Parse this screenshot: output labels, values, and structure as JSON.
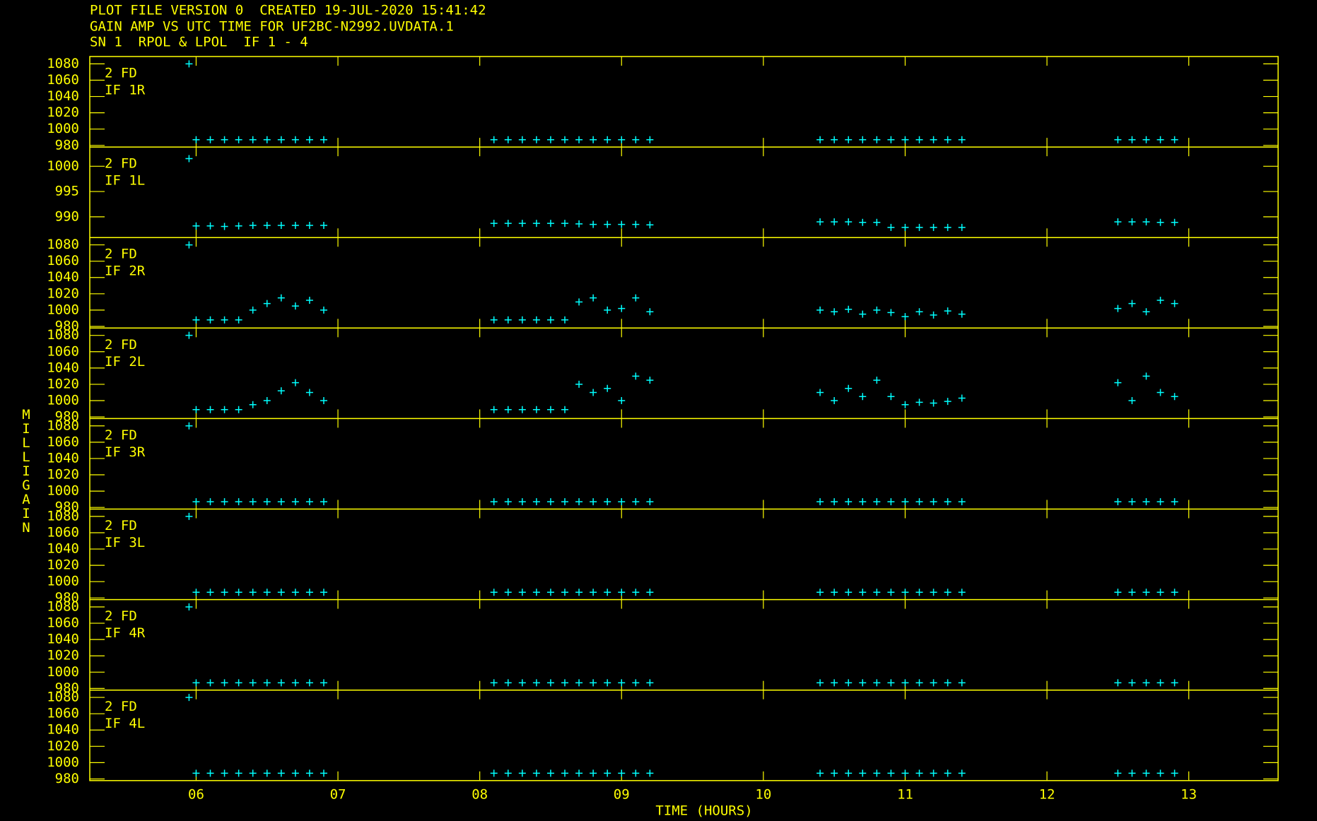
{
  "header": [
    "PLOT FILE VERSION 0  CREATED 19-JUL-2020 15:41:42",
    "GAIN AMP VS UTC TIME FOR UF2BC-N2992.UVDATA.1",
    "SN 1  RPOL & LPOL  IF 1 - 4"
  ],
  "y_axis_label": "MILLIGAIN",
  "x_axis": {
    "label": "TIME (HOURS)",
    "xlim": [
      5.25,
      13.63
    ],
    "xticks": [
      {
        "value": 6,
        "label": "06"
      },
      {
        "value": 7,
        "label": "07"
      },
      {
        "value": 8,
        "label": "08"
      },
      {
        "value": 9,
        "label": "09"
      },
      10,
      11,
      12,
      13
    ]
  },
  "chart_data": [
    {
      "type": "scatter",
      "annotation": "2 FD",
      "label": "IF 1R",
      "color": "#00ffff",
      "ylim": [
        978,
        1089
      ],
      "yticks": [
        980,
        1000,
        1020,
        1040,
        1060,
        1080
      ],
      "x": [
        5.95,
        6.0,
        6.1,
        6.2,
        6.3,
        6.4,
        6.5,
        6.6,
        6.7,
        6.8,
        6.9,
        8.1,
        8.2,
        8.3,
        8.4,
        8.5,
        8.6,
        8.7,
        8.8,
        8.9,
        9.0,
        9.1,
        9.2,
        10.4,
        10.5,
        10.6,
        10.7,
        10.8,
        10.9,
        11.0,
        11.1,
        11.2,
        11.3,
        11.4,
        12.5,
        12.6,
        12.7,
        12.8,
        12.9
      ],
      "values": [
        1080,
        987,
        987,
        987,
        987,
        987,
        987,
        987,
        987,
        987,
        987,
        987,
        987,
        987,
        987,
        987,
        987,
        987,
        987,
        987,
        987,
        987,
        987,
        987,
        987,
        987,
        987,
        987,
        987,
        987,
        987,
        987,
        987,
        987,
        987,
        987,
        987,
        987,
        987
      ]
    },
    {
      "type": "scatter",
      "annotation": "2 FD",
      "label": "IF 1L",
      "color": "#00ffff",
      "ylim": [
        985.9,
        1003.8
      ],
      "yticks": [
        990,
        995,
        1000
      ],
      "x": [
        5.95,
        6.0,
        6.1,
        6.2,
        6.3,
        6.4,
        6.5,
        6.6,
        6.7,
        6.8,
        6.9,
        8.1,
        8.2,
        8.3,
        8.4,
        8.5,
        8.6,
        8.7,
        8.8,
        8.9,
        9.0,
        9.1,
        9.2,
        10.4,
        10.5,
        10.6,
        10.7,
        10.8,
        10.9,
        11.0,
        11.1,
        11.2,
        11.3,
        11.4,
        12.5,
        12.6,
        12.7,
        12.8,
        12.9
      ],
      "values": [
        1001.5,
        988.2,
        988.2,
        988.1,
        988.2,
        988.3,
        988.3,
        988.3,
        988.3,
        988.3,
        988.3,
        988.7,
        988.7,
        988.7,
        988.7,
        988.7,
        988.7,
        988.6,
        988.5,
        988.5,
        988.5,
        988.5,
        988.4,
        989.0,
        989.0,
        989.0,
        988.9,
        988.9,
        987.9,
        987.9,
        987.9,
        987.9,
        987.9,
        987.9,
        989.0,
        989.0,
        989.0,
        988.9,
        988.9
      ]
    },
    {
      "type": "scatter",
      "annotation": "2 FD",
      "label": "IF 2R",
      "color": "#00ffff",
      "ylim": [
        978,
        1089
      ],
      "yticks": [
        980,
        1000,
        1020,
        1040,
        1060,
        1080
      ],
      "x": [
        5.95,
        6.0,
        6.1,
        6.2,
        6.3,
        6.4,
        6.5,
        6.6,
        6.7,
        6.8,
        6.9,
        8.1,
        8.2,
        8.3,
        8.4,
        8.5,
        8.6,
        8.7,
        8.8,
        8.9,
        9.0,
        9.1,
        9.2,
        10.4,
        10.5,
        10.6,
        10.7,
        10.8,
        10.9,
        11.0,
        11.1,
        11.2,
        11.3,
        11.4,
        12.5,
        12.6,
        12.7,
        12.8,
        12.9
      ],
      "values": [
        1080,
        988,
        988,
        988,
        988,
        1000,
        1008,
        1015,
        1005,
        1012,
        1000,
        988,
        988,
        988,
        988,
        988,
        988,
        1010,
        1015,
        1000,
        1002,
        1015,
        998,
        1000,
        998,
        1001,
        995,
        1000,
        997,
        992,
        998,
        994,
        999,
        995,
        1002,
        1008,
        998,
        1012,
        1008
      ]
    },
    {
      "type": "scatter",
      "annotation": "2 FD",
      "label": "IF 2L",
      "color": "#00ffff",
      "ylim": [
        978,
        1089
      ],
      "yticks": [
        980,
        1000,
        1020,
        1040,
        1060,
        1080
      ],
      "x": [
        5.95,
        6.0,
        6.1,
        6.2,
        6.3,
        6.4,
        6.5,
        6.6,
        6.7,
        6.8,
        6.9,
        8.1,
        8.2,
        8.3,
        8.4,
        8.5,
        8.6,
        8.7,
        8.8,
        8.9,
        9.0,
        9.1,
        9.2,
        10.4,
        10.5,
        10.6,
        10.7,
        10.8,
        10.9,
        11.0,
        11.1,
        11.2,
        11.3,
        11.4,
        12.5,
        12.6,
        12.7,
        12.8,
        12.9
      ],
      "values": [
        1080,
        989,
        989,
        989,
        989,
        995,
        1000,
        1012,
        1022,
        1010,
        1000,
        989,
        989,
        989,
        989,
        989,
        989,
        1020,
        1010,
        1015,
        1000,
        1030,
        1025,
        1010,
        1000,
        1015,
        1005,
        1025,
        1005,
        995,
        998,
        997,
        999,
        1003,
        1022,
        1000,
        1030,
        1010,
        1005
      ]
    },
    {
      "type": "scatter",
      "annotation": "2 FD",
      "label": "IF 3R",
      "color": "#00ffff",
      "ylim": [
        978,
        1089
      ],
      "yticks": [
        980,
        1000,
        1020,
        1040,
        1060,
        1080
      ],
      "x": [
        5.95,
        6.0,
        6.1,
        6.2,
        6.3,
        6.4,
        6.5,
        6.6,
        6.7,
        6.8,
        6.9,
        8.1,
        8.2,
        8.3,
        8.4,
        8.5,
        8.6,
        8.7,
        8.8,
        8.9,
        9.0,
        9.1,
        9.2,
        10.4,
        10.5,
        10.6,
        10.7,
        10.8,
        10.9,
        11.0,
        11.1,
        11.2,
        11.3,
        11.4,
        12.5,
        12.6,
        12.7,
        12.8,
        12.9
      ],
      "values": [
        1080,
        987,
        987,
        987,
        987,
        987,
        987,
        987,
        987,
        987,
        987,
        987,
        987,
        987,
        987,
        987,
        987,
        987,
        987,
        987,
        987,
        987,
        987,
        987,
        987,
        987,
        987,
        987,
        987,
        987,
        987,
        987,
        987,
        987,
        987,
        987,
        987,
        987,
        987
      ]
    },
    {
      "type": "scatter",
      "annotation": "2 FD",
      "label": "IF 3L",
      "color": "#00ffff",
      "ylim": [
        978,
        1089
      ],
      "yticks": [
        980,
        1000,
        1020,
        1040,
        1060,
        1080
      ],
      "x": [
        5.95,
        6.0,
        6.1,
        6.2,
        6.3,
        6.4,
        6.5,
        6.6,
        6.7,
        6.8,
        6.9,
        8.1,
        8.2,
        8.3,
        8.4,
        8.5,
        8.6,
        8.7,
        8.8,
        8.9,
        9.0,
        9.1,
        9.2,
        10.4,
        10.5,
        10.6,
        10.7,
        10.8,
        10.9,
        11.0,
        11.1,
        11.2,
        11.3,
        11.4,
        12.5,
        12.6,
        12.7,
        12.8,
        12.9
      ],
      "values": [
        1080,
        987,
        987,
        987,
        987,
        987,
        987,
        987,
        987,
        987,
        987,
        987,
        987,
        987,
        987,
        987,
        987,
        987,
        987,
        987,
        987,
        987,
        987,
        987,
        987,
        987,
        987,
        987,
        987,
        987,
        987,
        987,
        987,
        987,
        987,
        987,
        987,
        987,
        987
      ]
    },
    {
      "type": "scatter",
      "annotation": "2 FD",
      "label": "IF 4R",
      "color": "#00ffff",
      "ylim": [
        978,
        1089
      ],
      "yticks": [
        980,
        1000,
        1020,
        1040,
        1060,
        1080
      ],
      "x": [
        5.95,
        6.0,
        6.1,
        6.2,
        6.3,
        6.4,
        6.5,
        6.6,
        6.7,
        6.8,
        6.9,
        8.1,
        8.2,
        8.3,
        8.4,
        8.5,
        8.6,
        8.7,
        8.8,
        8.9,
        9.0,
        9.1,
        9.2,
        10.4,
        10.5,
        10.6,
        10.7,
        10.8,
        10.9,
        11.0,
        11.1,
        11.2,
        11.3,
        11.4,
        12.5,
        12.6,
        12.7,
        12.8,
        12.9
      ],
      "values": [
        1080,
        987,
        987,
        987,
        987,
        987,
        987,
        987,
        987,
        987,
        987,
        987,
        987,
        987,
        987,
        987,
        987,
        987,
        987,
        987,
        987,
        987,
        987,
        987,
        987,
        987,
        987,
        987,
        987,
        987,
        987,
        987,
        987,
        987,
        987,
        987,
        987,
        987,
        987
      ]
    },
    {
      "type": "scatter",
      "annotation": "2 FD",
      "label": "IF 4L",
      "color": "#00ffff",
      "ylim": [
        978,
        1089
      ],
      "yticks": [
        980,
        1000,
        1020,
        1040,
        1060,
        1080
      ],
      "x": [
        5.95,
        6.0,
        6.1,
        6.2,
        6.3,
        6.4,
        6.5,
        6.6,
        6.7,
        6.8,
        6.9,
        8.1,
        8.2,
        8.3,
        8.4,
        8.5,
        8.6,
        8.7,
        8.8,
        8.9,
        9.0,
        9.1,
        9.2,
        10.4,
        10.5,
        10.6,
        10.7,
        10.8,
        10.9,
        11.0,
        11.1,
        11.2,
        11.3,
        11.4,
        12.5,
        12.6,
        12.7,
        12.8,
        12.9
      ],
      "values": [
        1080,
        987,
        987,
        987,
        987,
        987,
        987,
        987,
        987,
        987,
        987,
        987,
        987,
        987,
        987,
        987,
        987,
        987,
        987,
        987,
        987,
        987,
        987,
        987,
        987,
        987,
        987,
        987,
        987,
        987,
        987,
        987,
        987,
        987,
        987,
        987,
        987,
        987,
        987
      ]
    }
  ]
}
